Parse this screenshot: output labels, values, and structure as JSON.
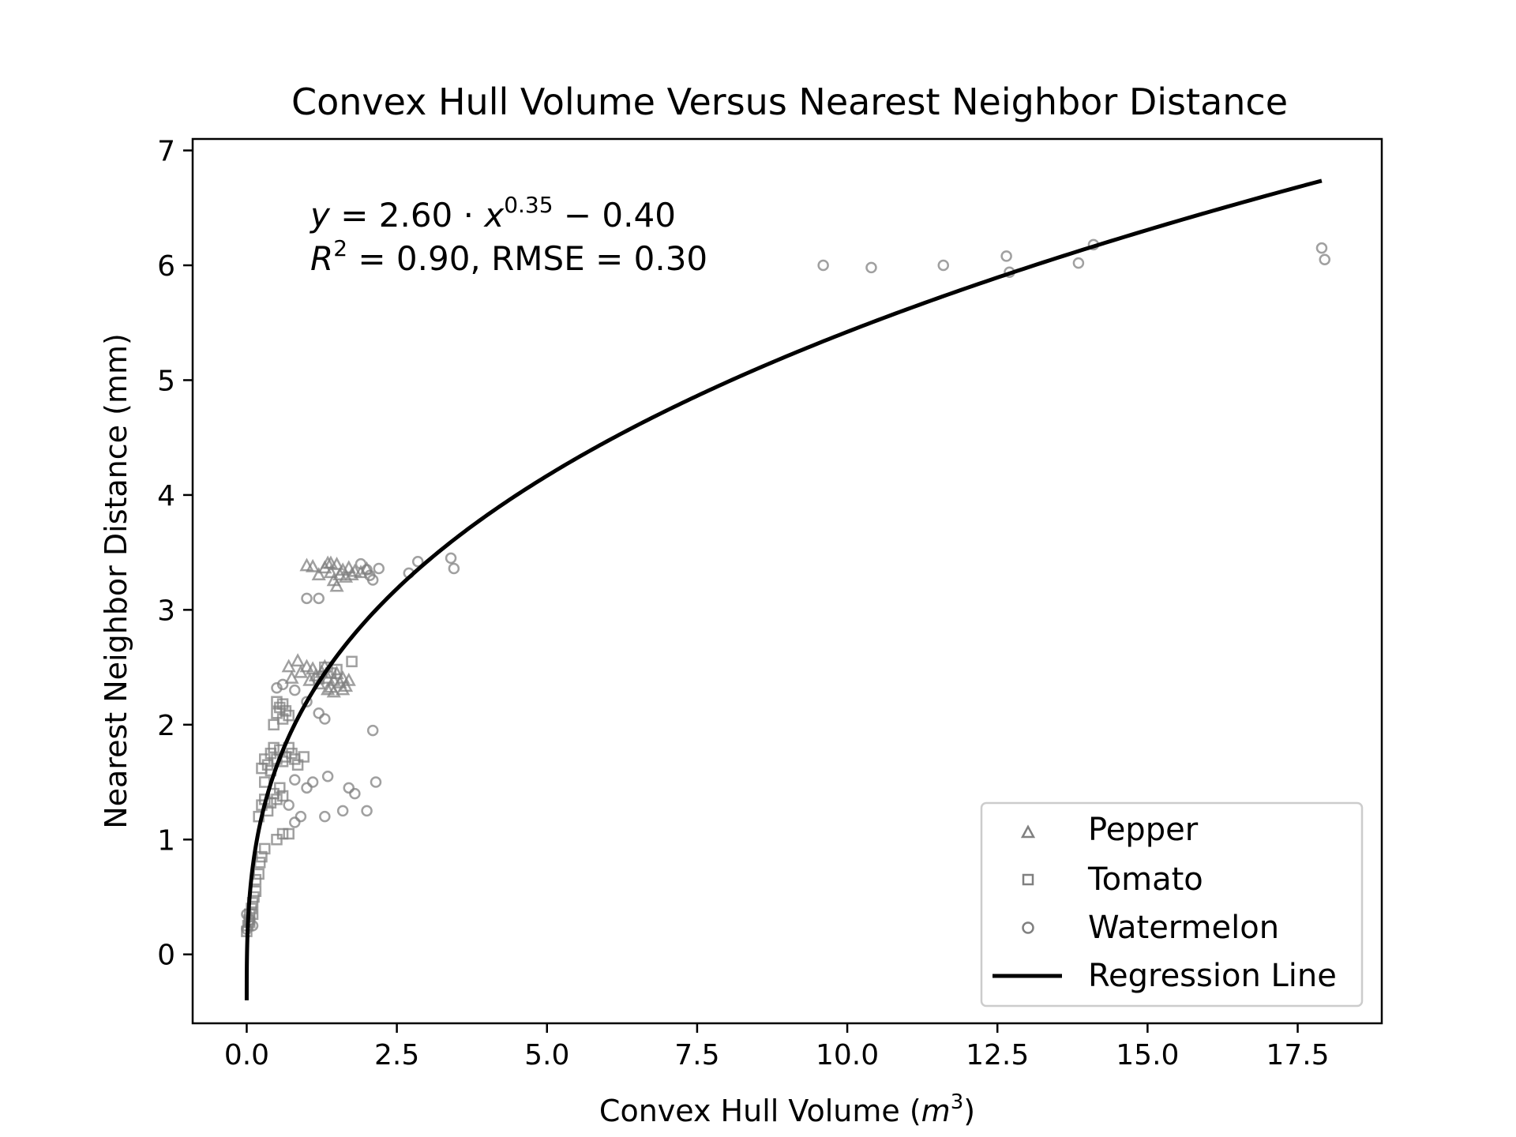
{
  "chart_data": {
    "type": "scatter",
    "title": "Convex Hull Volume Versus Nearest Neighbor Distance",
    "xlabel": {
      "main": "Convex Hull Volume (",
      "var": "m",
      "sup": "3",
      "end": ")"
    },
    "ylabel": "Nearest Neighbor Distance (mm)",
    "xlim": [
      -0.9,
      18.9
    ],
    "ylim": [
      -0.6,
      7.1
    ],
    "xticks": [
      0.0,
      2.5,
      5.0,
      7.5,
      10.0,
      12.5,
      15.0,
      17.5
    ],
    "xtick_labels": [
      "0.0",
      "2.5",
      "5.0",
      "7.5",
      "10.0",
      "12.5",
      "15.0",
      "17.5"
    ],
    "yticks": [
      0,
      1,
      2,
      3,
      4,
      5,
      6,
      7
    ],
    "ytick_labels": [
      "0",
      "1",
      "2",
      "3",
      "4",
      "5",
      "6",
      "7"
    ],
    "grid": false,
    "legend_position": "bottom-right",
    "annotation": {
      "line1": {
        "y": "y",
        "eq": " = 2.60 · ",
        "x": "x",
        "exp": "0.35",
        "tail": " − 0.40"
      },
      "line2": {
        "r": "R",
        "sup": "2",
        "rest": " = 0.90, RMSE = 0.30"
      }
    },
    "series": [
      {
        "name": "Pepper",
        "marker": "triangle",
        "color": "#808080",
        "points": [
          [
            1.0,
            3.38
          ],
          [
            1.1,
            3.37
          ],
          [
            1.2,
            3.3
          ],
          [
            1.3,
            3.36
          ],
          [
            1.35,
            3.4
          ],
          [
            1.4,
            3.32
          ],
          [
            1.45,
            3.25
          ],
          [
            1.5,
            3.39
          ],
          [
            1.55,
            3.3
          ],
          [
            1.6,
            3.34
          ],
          [
            1.65,
            3.28
          ],
          [
            1.7,
            3.36
          ],
          [
            1.75,
            3.3
          ],
          [
            1.8,
            3.33
          ],
          [
            1.5,
            3.2
          ],
          [
            1.4,
            3.4
          ],
          [
            1.9,
            3.32
          ],
          [
            2.0,
            3.35
          ],
          [
            0.7,
            2.5
          ],
          [
            0.75,
            2.4
          ],
          [
            0.85,
            2.55
          ],
          [
            0.9,
            2.45
          ],
          [
            1.0,
            2.5
          ],
          [
            1.05,
            2.38
          ],
          [
            1.1,
            2.48
          ],
          [
            1.15,
            2.42
          ],
          [
            1.2,
            2.35
          ],
          [
            1.25,
            2.45
          ],
          [
            1.3,
            2.5
          ],
          [
            1.35,
            2.4
          ],
          [
            1.4,
            2.32
          ],
          [
            1.45,
            2.38
          ],
          [
            1.5,
            2.44
          ],
          [
            1.55,
            2.36
          ],
          [
            1.6,
            2.4
          ],
          [
            1.65,
            2.33
          ],
          [
            1.7,
            2.38
          ],
          [
            1.35,
            2.3
          ],
          [
            1.45,
            2.28
          ],
          [
            1.6,
            2.3
          ]
        ]
      },
      {
        "name": "Tomato",
        "marker": "square",
        "color": "#808080",
        "points": [
          [
            0.0,
            0.2
          ],
          [
            0.02,
            0.25
          ],
          [
            0.04,
            0.3
          ],
          [
            0.05,
            0.35
          ],
          [
            0.08,
            0.4
          ],
          [
            0.1,
            0.45
          ],
          [
            0.12,
            0.5
          ],
          [
            0.15,
            0.55
          ],
          [
            0.15,
            0.65
          ],
          [
            0.2,
            0.7
          ],
          [
            0.22,
            0.8
          ],
          [
            0.25,
            0.85
          ],
          [
            0.3,
            0.92
          ],
          [
            0.05,
            0.28
          ],
          [
            0.1,
            0.35
          ],
          [
            0.5,
            1.0
          ],
          [
            0.6,
            1.05
          ],
          [
            0.7,
            1.05
          ],
          [
            0.2,
            1.2
          ],
          [
            0.25,
            1.3
          ],
          [
            0.3,
            1.35
          ],
          [
            0.35,
            1.25
          ],
          [
            0.4,
            1.32
          ],
          [
            0.45,
            1.4
          ],
          [
            0.5,
            1.35
          ],
          [
            0.55,
            1.45
          ],
          [
            0.6,
            1.38
          ],
          [
            0.3,
            1.5
          ],
          [
            0.25,
            1.62
          ],
          [
            0.3,
            1.7
          ],
          [
            0.35,
            1.65
          ],
          [
            0.4,
            1.75
          ],
          [
            0.45,
            1.8
          ],
          [
            0.5,
            1.7
          ],
          [
            0.55,
            1.78
          ],
          [
            0.6,
            1.68
          ],
          [
            0.65,
            1.72
          ],
          [
            0.7,
            1.8
          ],
          [
            0.75,
            1.75
          ],
          [
            0.8,
            1.7
          ],
          [
            0.85,
            1.65
          ],
          [
            0.95,
            1.72
          ],
          [
            0.4,
            1.6
          ],
          [
            0.45,
            2.0
          ],
          [
            0.5,
            2.1
          ],
          [
            0.55,
            2.15
          ],
          [
            0.6,
            2.05
          ],
          [
            0.65,
            2.12
          ],
          [
            0.7,
            2.08
          ],
          [
            0.6,
            2.18
          ],
          [
            0.5,
            2.2
          ],
          [
            1.3,
            2.5
          ],
          [
            1.4,
            2.45
          ],
          [
            1.5,
            2.48
          ],
          [
            1.75,
            2.55
          ],
          [
            1.2,
            2.4
          ]
        ]
      },
      {
        "name": "Watermelon",
        "marker": "circle",
        "color": "#808080",
        "points": [
          [
            0.0,
            0.22
          ],
          [
            0.05,
            0.3
          ],
          [
            0.1,
            0.25
          ],
          [
            0.0,
            0.35
          ],
          [
            0.7,
            1.3
          ],
          [
            0.8,
            1.15
          ],
          [
            0.9,
            1.2
          ],
          [
            0.8,
            1.52
          ],
          [
            1.0,
            1.45
          ],
          [
            1.1,
            1.5
          ],
          [
            1.35,
            1.55
          ],
          [
            1.6,
            1.25
          ],
          [
            1.8,
            1.4
          ],
          [
            1.7,
            1.45
          ],
          [
            1.3,
            1.2
          ],
          [
            2.0,
            1.25
          ],
          [
            2.15,
            1.5
          ],
          [
            2.1,
            1.95
          ],
          [
            0.5,
            2.32
          ],
          [
            0.6,
            2.35
          ],
          [
            0.8,
            2.3
          ],
          [
            1.2,
            2.1
          ],
          [
            1.3,
            2.05
          ],
          [
            1.0,
            2.2
          ],
          [
            1.0,
            3.1
          ],
          [
            1.2,
            3.1
          ],
          [
            1.9,
            3.4
          ],
          [
            2.0,
            3.35
          ],
          [
            2.05,
            3.3
          ],
          [
            2.1,
            3.26
          ],
          [
            2.2,
            3.36
          ],
          [
            2.7,
            3.32
          ],
          [
            2.85,
            3.42
          ],
          [
            3.4,
            3.45
          ],
          [
            3.45,
            3.36
          ],
          [
            9.6,
            6.0
          ],
          [
            10.4,
            5.98
          ],
          [
            11.6,
            6.0
          ],
          [
            12.65,
            6.08
          ],
          [
            12.7,
            5.94
          ],
          [
            13.85,
            6.02
          ],
          [
            14.1,
            6.18
          ],
          [
            17.9,
            6.15
          ],
          [
            17.95,
            6.05
          ]
        ]
      },
      {
        "name": "Regression Line",
        "marker": "line",
        "color": "#000000",
        "model": {
          "a": 2.6,
          "b": 0.35,
          "c": -0.4,
          "x_min": 0.0,
          "x_max": 17.9
        }
      }
    ]
  }
}
